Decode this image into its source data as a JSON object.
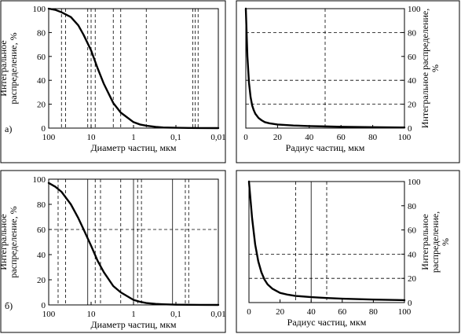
{
  "chart_data": [
    {
      "panel": "а)",
      "type": "line",
      "xscale": "log",
      "xreversed": true,
      "xlim": [
        100,
        0.01
      ],
      "ylim": [
        0,
        100
      ],
      "xticks": [
        100,
        10,
        1,
        0.1,
        0.01
      ],
      "xticklabels": [
        "100",
        "10",
        "1",
        "0,1",
        "0,01"
      ],
      "yticks": [
        0,
        20,
        40,
        60,
        80,
        100
      ],
      "xlabel": "Диаметр частиц, мкм",
      "ylabel": [
        "Интегральное",
        "распределение, %"
      ],
      "ylabel_side": "left",
      "grid_h": [],
      "grid_v_dashed": [
        50,
        40,
        12,
        10,
        8,
        3,
        2,
        0.5,
        0.04,
        0.035,
        0.03
      ],
      "grid_v_solid": [],
      "series": [
        {
          "x": [
            100,
            70,
            50,
            30,
            20,
            15,
            10,
            7,
            5,
            3,
            2,
            1,
            0.7,
            0.5,
            0.3,
            0.2,
            0.1,
            0.05,
            0.01
          ],
          "values": [
            100,
            99,
            97,
            93,
            86,
            78,
            65,
            50,
            37,
            21,
            13,
            5,
            3,
            2,
            1,
            0.5,
            0.3,
            0.1,
            0
          ]
        }
      ]
    },
    {
      "panel": "",
      "type": "line",
      "xscale": "linear",
      "xreversed": false,
      "xlim": [
        0,
        100
      ],
      "ylim": [
        0,
        100
      ],
      "xticks": [
        0,
        20,
        40,
        60,
        80,
        100
      ],
      "xticklabels": [
        "0",
        "20",
        "40",
        "60",
        "80",
        "100"
      ],
      "yticks": [
        0,
        20,
        40,
        60,
        80,
        100
      ],
      "xlabel": "Радиус частиц, мкм",
      "ylabel": [
        "Интегральное распределение,",
        "%"
      ],
      "ylabel_side": "right",
      "grid_h": [
        20,
        40,
        80
      ],
      "grid_v_dashed": [
        50
      ],
      "grid_v_solid": [],
      "series": [
        {
          "x": [
            0,
            1,
            2,
            3,
            4,
            5,
            6,
            8,
            10,
            12,
            15,
            20,
            30,
            40,
            50,
            60,
            80,
            100
          ],
          "values": [
            100,
            60,
            38,
            26,
            19,
            15,
            12,
            8.5,
            6.5,
            5,
            4,
            3,
            2.2,
            1.7,
            1.4,
            1.1,
            0.8,
            0.5
          ]
        }
      ]
    },
    {
      "panel": "б)",
      "type": "line",
      "xscale": "log",
      "xreversed": true,
      "xlim": [
        100,
        0.01
      ],
      "ylim": [
        0,
        100
      ],
      "xticks": [
        100,
        10,
        1,
        0.1,
        0.01
      ],
      "xticklabels": [
        "100",
        "10",
        "1",
        "0,1",
        "0,01"
      ],
      "yticks": [
        0,
        20,
        40,
        60,
        80,
        100
      ],
      "xlabel": "Диаметр частиц, мкм",
      "ylabel": [
        "Интегральное",
        "распределение, %"
      ],
      "ylabel_side": "left",
      "grid_h": [
        60
      ],
      "grid_v_dashed": [
        60,
        40,
        8,
        6,
        2,
        0.8,
        0.65,
        0.06,
        0.05
      ],
      "grid_v_solid": [
        12,
        1,
        0.12
      ],
      "series": [
        {
          "x": [
            100,
            70,
            50,
            30,
            20,
            15,
            10,
            7,
            5,
            3,
            2,
            1,
            0.7,
            0.5,
            0.3,
            0.2,
            0.1,
            0.05,
            0.01
          ],
          "values": [
            97,
            94,
            90,
            80,
            69,
            60,
            47,
            35,
            26,
            15,
            10,
            4,
            2.5,
            1.5,
            0.8,
            0.5,
            0.2,
            0.1,
            0
          ]
        }
      ]
    },
    {
      "panel": "",
      "type": "line",
      "xscale": "linear",
      "xreversed": false,
      "xlim": [
        0,
        100
      ],
      "ylim": [
        0,
        100
      ],
      "xticks": [
        0,
        20,
        40,
        60,
        80,
        100
      ],
      "xticklabels": [
        "0",
        "20",
        "40",
        "60",
        "80",
        "100"
      ],
      "yticks": [
        0,
        20,
        40,
        60,
        80,
        100
      ],
      "xlabel": "Радиус частиц, мкм",
      "ylabel": [
        "Интегральное",
        "распределение,",
        "%"
      ],
      "ylabel_side": "right",
      "grid_h": [
        20,
        40
      ],
      "grid_v_dashed": [
        30,
        50
      ],
      "grid_v_solid": [
        40
      ],
      "series": [
        {
          "x": [
            0,
            2,
            4,
            6,
            8,
            10,
            12,
            15,
            20,
            25,
            30,
            40,
            50,
            60,
            80,
            100
          ],
          "values": [
            100,
            70,
            48,
            34,
            25,
            19,
            15,
            11.5,
            8,
            6.5,
            5.5,
            4.5,
            3.8,
            3.2,
            2.5,
            2
          ]
        }
      ]
    }
  ]
}
